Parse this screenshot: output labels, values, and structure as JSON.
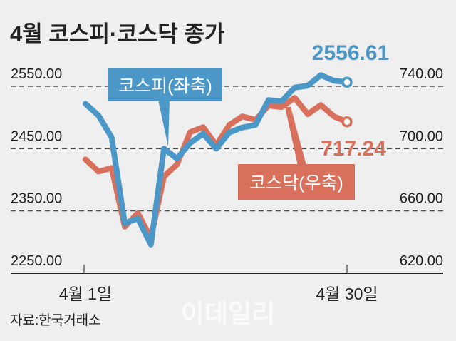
{
  "chart_data": {
    "type": "line",
    "title": "4월 코스피·코스닥 종가",
    "source": "자료:한국거래소",
    "watermark": "이데일리",
    "x_tick_labels": [
      "4월 1일",
      "4월 30일"
    ],
    "left_axis": {
      "ticks": [
        "2550.00",
        "2450.00",
        "2350.00",
        "2250.00"
      ],
      "values": [
        2550,
        2450,
        2350,
        2250
      ],
      "ylim": [
        2250,
        2550
      ]
    },
    "right_axis": {
      "ticks": [
        "740.00",
        "700.00",
        "660.00",
        "620.00"
      ],
      "values": [
        740,
        700,
        660,
        620
      ],
      "ylim": [
        620,
        740
      ]
    },
    "grid": true,
    "series": [
      {
        "name": "코스피",
        "label": "코스피(좌축)",
        "axis": "left",
        "color": "#4b97c8",
        "last_label": "2556.61",
        "values": [
          2522,
          2503,
          2468,
          2330,
          2338,
          2296,
          2450,
          2434,
          2459,
          2474,
          2450,
          2476,
          2484,
          2488,
          2528,
          2526,
          2548,
          2551,
          2568,
          2559,
          2556.61
        ]
      },
      {
        "name": "코스닥",
        "label": "코스닥(우축)",
        "axis": "right",
        "color": "#d8705c",
        "last_label": "717.24",
        "values": [
          693.1,
          685.3,
          687.6,
          649.9,
          658.6,
          642.5,
          682.1,
          689.9,
          710.6,
          713.8,
          702.3,
          715.2,
          720.7,
          718.4,
          727.6,
          726.7,
          732.6,
          722.1,
          728.0,
          720.7,
          717.24
        ]
      }
    ]
  }
}
